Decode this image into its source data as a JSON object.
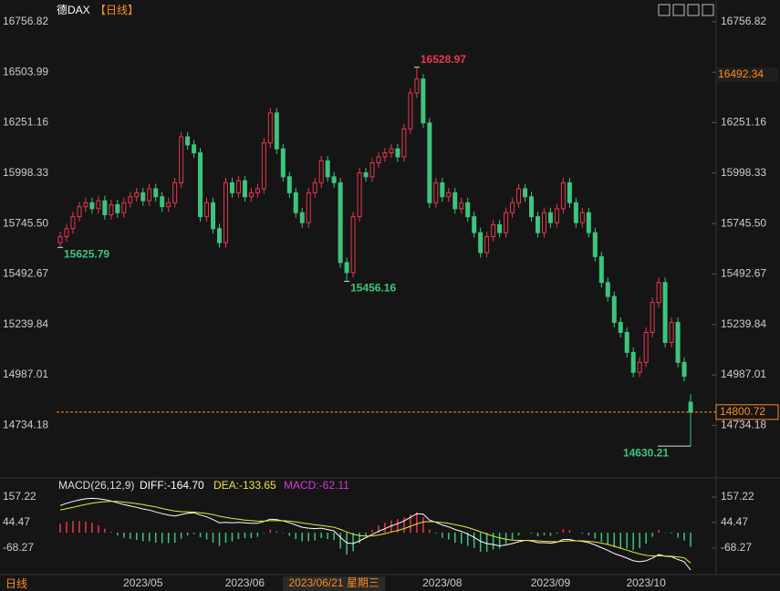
{
  "chart_data": {
    "type": "candlestick",
    "title": "德DAX",
    "period": "【日线】",
    "bottom_period": "日线",
    "open": [
      15650,
      15680,
      15720,
      15780,
      15830,
      15850,
      15820,
      15860,
      15790,
      15840,
      15800,
      15850,
      15880,
      15900,
      15860,
      15920,
      15880,
      15830,
      15850,
      15950,
      16180,
      16140,
      16100,
      15780,
      15850,
      15720,
      15650,
      15950,
      15900,
      15960,
      15880,
      15900,
      15920,
      16150,
      16300,
      16120,
      15980,
      15900,
      15800,
      15750,
      15900,
      15950,
      16060,
      15980,
      15950,
      15550,
      15500,
      15780,
      16000,
      15980,
      16050,
      16080,
      16100,
      16120,
      16080,
      16220,
      16400,
      16470,
      16250,
      15850,
      15950,
      15880,
      15900,
      15820,
      15850,
      15780,
      15700,
      15600,
      15680,
      15740,
      15700,
      15800,
      15850,
      15920,
      15880,
      15780,
      15700,
      15800,
      15750,
      15820,
      15950,
      15850,
      15750,
      15800,
      15700,
      15580,
      15450,
      15380,
      15250,
      15200,
      15100,
      15000,
      15050,
      15200,
      15350,
      15450,
      15150,
      15250,
      15050,
      14850
    ],
    "high": [
      15705,
      15745,
      15805,
      15855,
      15875,
      15875,
      15885,
      15885,
      15865,
      15865,
      15875,
      15905,
      15925,
      15925,
      15945,
      15945,
      15905,
      15875,
      15975,
      16205,
      16205,
      16165,
      16125,
      15875,
      15875,
      15745,
      15975,
      15975,
      15985,
      15985,
      15925,
      15945,
      16175,
      16325,
      16325,
      16145,
      16005,
      15925,
      15825,
      15925,
      15975,
      16085,
      16085,
      16005,
      15975,
      15575,
      15805,
      16025,
      16025,
      16075,
      16105,
      16125,
      16145,
      16145,
      16245,
      16425,
      16528.97,
      16495,
      16275,
      15975,
      15975,
      15925,
      15925,
      15875,
      15875,
      15805,
      15725,
      15705,
      15765,
      15765,
      15825,
      15875,
      15945,
      15945,
      15905,
      15805,
      15825,
      15825,
      15845,
      15975,
      15975,
      15875,
      15825,
      15825,
      15725,
      15605,
      15475,
      15405,
      15275,
      15225,
      15125,
      15075,
      15225,
      15375,
      15475,
      15475,
      15275,
      15275,
      15075,
      14890
    ],
    "low": [
      15625.79,
      15655,
      15695,
      15755,
      15805,
      15795,
      15795,
      15765,
      15765,
      15775,
      15775,
      15825,
      15855,
      15835,
      15835,
      15855,
      15805,
      15805,
      15825,
      15925,
      16115,
      16075,
      15755,
      15755,
      15695,
      15625,
      15625,
      15875,
      15875,
      15855,
      15855,
      15875,
      15895,
      16125,
      16095,
      15955,
      15875,
      15775,
      15725,
      15725,
      15875,
      15925,
      15955,
      15925,
      15525,
      15456.16,
      15475,
      15755,
      15955,
      15955,
      16025,
      16055,
      16075,
      16055,
      16055,
      16195,
      16375,
      16225,
      15825,
      15825,
      15855,
      15855,
      15795,
      15795,
      15755,
      15675,
      15575,
      15575,
      15655,
      15675,
      15675,
      15775,
      15825,
      15855,
      15755,
      15675,
      15675,
      15725,
      15725,
      15795,
      15825,
      15725,
      15725,
      15675,
      15555,
      15425,
      15355,
      15225,
      15175,
      15075,
      14975,
      14975,
      15025,
      15175,
      15325,
      15125,
      15125,
      15025,
      14955,
      14630.21
    ],
    "close": [
      15680,
      15720,
      15780,
      15830,
      15850,
      15820,
      15860,
      15790,
      15840,
      15800,
      15850,
      15880,
      15900,
      15860,
      15920,
      15880,
      15830,
      15850,
      15950,
      16180,
      16140,
      16100,
      15780,
      15850,
      15720,
      15650,
      15950,
      15900,
      15960,
      15880,
      15900,
      15920,
      16150,
      16300,
      16120,
      15980,
      15900,
      15800,
      15750,
      15900,
      15950,
      16060,
      15980,
      15950,
      15550,
      15500,
      15780,
      16000,
      15980,
      16050,
      16080,
      16100,
      16120,
      16080,
      16220,
      16400,
      16470,
      16250,
      15850,
      15950,
      15880,
      15900,
      15820,
      15850,
      15780,
      15700,
      15600,
      15680,
      15740,
      15700,
      15800,
      15850,
      15920,
      15880,
      15780,
      15700,
      15800,
      15750,
      15820,
      15950,
      15850,
      15750,
      15800,
      15700,
      15580,
      15450,
      15380,
      15250,
      15200,
      15100,
      15000,
      15050,
      15200,
      15350,
      15450,
      15150,
      15250,
      15050,
      14980,
      14800.72
    ],
    "up_color": "#e8374d",
    "down_color": "#3dc47e",
    "ylim": [
      14480,
      16802
    ],
    "yticks": [
      16756.82,
      16503.99,
      16251.16,
      15998.33,
      {
        "value": 15745.5,
        "label": "15745.50"
      },
      15492.67,
      15239.84,
      14987.01,
      14734.18
    ],
    "marker_price": 16492.34,
    "x_labels": [
      {
        "index": 13,
        "label": "2023/05"
      },
      {
        "index": 29,
        "label": "2023/06"
      },
      {
        "index": 60,
        "label": "2023/08"
      },
      {
        "index": 77,
        "label": "2023/09"
      },
      {
        "index": 92,
        "label": "2023/10"
      }
    ],
    "crosshair": {
      "index": 43,
      "label": "2023/06/21 星期三"
    },
    "macd": {
      "title": "MACD(26,12,9)",
      "dif_label": "DIFF:-164.70",
      "dea_label": "DEA:-133.65",
      "macd_label": "MACD:-62.11",
      "dif_color": "#ffffff",
      "dea_color": "#e8e832",
      "macd_color": "#d23ad2",
      "ylim": [
        -185,
        226
      ],
      "yticks": [
        157.22,
        44.47,
        -68.27
      ],
      "dif": [
        120,
        130,
        138,
        145,
        150,
        152,
        150,
        146,
        140,
        132,
        124,
        118,
        112,
        105,
        100,
        92,
        84,
        78,
        74,
        80,
        86,
        88,
        78,
        70,
        58,
        44,
        46,
        44,
        46,
        44,
        42,
        42,
        50,
        60,
        58,
        52,
        44,
        34,
        24,
        20,
        18,
        20,
        14,
        8,
        -20,
        -45,
        -48,
        -36,
        -22,
        -8,
        6,
        18,
        30,
        40,
        52,
        68,
        84,
        82,
        56,
        46,
        34,
        26,
        14,
        6,
        -6,
        -20,
        -38,
        -48,
        -52,
        -58,
        -54,
        -48,
        -40,
        -34,
        -36,
        -44,
        -44,
        -46,
        -42,
        -30,
        -30,
        -36,
        -38,
        -44,
        -54,
        -66,
        -78,
        -92,
        -102,
        -112,
        -124,
        -128,
        -124,
        -112,
        -96,
        -104,
        -106,
        -118,
        -128,
        -164.7
      ],
      "dea": [
        100,
        106,
        112,
        119,
        125,
        130,
        134,
        137,
        138,
        138,
        135,
        132,
        128,
        124,
        119,
        114,
        107,
        101,
        96,
        93,
        92,
        91,
        88,
        85,
        80,
        73,
        68,
        63,
        60,
        56,
        54,
        51,
        51,
        53,
        54,
        53,
        51,
        48,
        43,
        39,
        35,
        32,
        28,
        24,
        15,
        3,
        -7,
        -13,
        -15,
        -14,
        -10,
        -4,
        3,
        10,
        18,
        28,
        39,
        48,
        49,
        48,
        45,
        41,
        36,
        30,
        23,
        14,
        4,
        -6,
        -15,
        -23,
        -29,
        -33,
        -34,
        -34,
        -34,
        -36,
        -38,
        -39,
        -40,
        -38,
        -36,
        -36,
        -36,
        -38,
        -41,
        -46,
        -52,
        -60,
        -68,
        -77,
        -86,
        -94,
        -100,
        -103,
        -102,
        -103,
        -104,
        -107,
        -111,
        -133.65
      ],
      "values": [
        40,
        48,
        52,
        52,
        50,
        44,
        32,
        18,
        4,
        -12,
        -22,
        -28,
        -32,
        -38,
        -38,
        -44,
        -46,
        -46,
        -44,
        -26,
        -12,
        -6,
        -20,
        -30,
        -44,
        -58,
        -44,
        -38,
        -28,
        -24,
        -24,
        -18,
        -2,
        14,
        8,
        -2,
        -14,
        -28,
        -38,
        -38,
        -34,
        -24,
        -28,
        -32,
        -70,
        -96,
        -82,
        -46,
        -14,
        12,
        32,
        44,
        54,
        60,
        68,
        80,
        90,
        68,
        14,
        -4,
        -22,
        -30,
        -44,
        -48,
        -58,
        -68,
        -84,
        -84,
        -74,
        -70,
        -50,
        -30,
        -12,
        0,
        -4,
        -16,
        -12,
        -14,
        -4,
        16,
        12,
        0,
        -4,
        -12,
        -26,
        -40,
        -52,
        -64,
        -68,
        -70,
        -76,
        -68,
        -48,
        -18,
        12,
        -2,
        -4,
        -22,
        -34,
        -62.11
      ]
    }
  }
}
